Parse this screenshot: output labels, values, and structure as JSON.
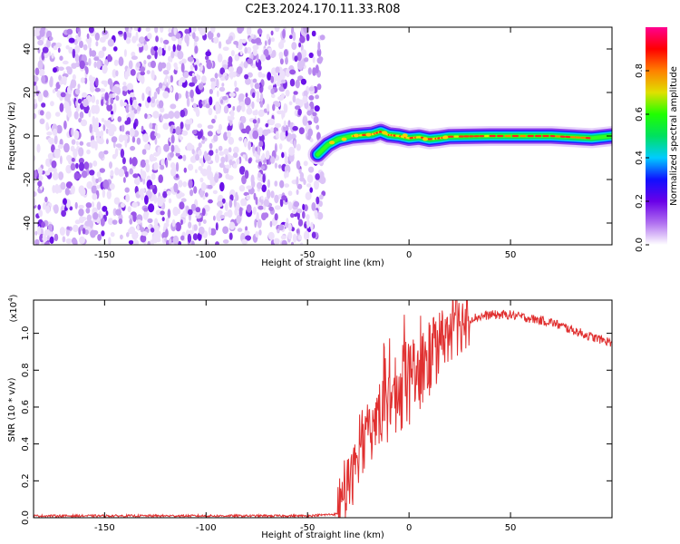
{
  "figure": {
    "title": "C2E3.2024.170.11.33.R08"
  },
  "chart_data": [
    {
      "type": "heatmap",
      "xlabel": "Height of straight line (km)",
      "ylabel": "Frequency (Hz)",
      "xlim": [
        -185,
        100
      ],
      "ylim": [
        -50,
        50
      ],
      "xticks": [
        -150,
        -100,
        -50,
        0,
        50
      ],
      "yticks": [
        -40,
        -20,
        0,
        20,
        40
      ],
      "noise_region_x": [
        -185,
        -42
      ],
      "ridge": [
        {
          "x": -45,
          "y": -8.5
        },
        {
          "x": -40,
          "y": -4
        },
        {
          "x": -35,
          "y": -1.5
        },
        {
          "x": -28,
          "y": 0
        },
        {
          "x": -22,
          "y": 0.5
        },
        {
          "x": -18,
          "y": 0.8
        },
        {
          "x": -14,
          "y": 2
        },
        {
          "x": -10,
          "y": 0.5
        },
        {
          "x": -5,
          "y": 0
        },
        {
          "x": 0,
          "y": -1
        },
        {
          "x": 5,
          "y": -0.5
        },
        {
          "x": 10,
          "y": -1.5
        },
        {
          "x": 15,
          "y": -1
        },
        {
          "x": 20,
          "y": -0.3
        },
        {
          "x": 40,
          "y": 0
        },
        {
          "x": 70,
          "y": 0
        },
        {
          "x": 90,
          "y": -1
        },
        {
          "x": 100,
          "y": 0
        }
      ],
      "colorbar": {
        "label": "Normalized spectral amplitude",
        "range": [
          0,
          1
        ],
        "ticks": [
          "0.0",
          "0.2",
          "0.4",
          "0.6",
          "0.8"
        ],
        "colors": [
          "#ffffff",
          "#b070f0",
          "#6a00e8",
          "#1010ff",
          "#00ccff",
          "#00e060",
          "#20ff00",
          "#e0e000",
          "#ff8000",
          "#ff0000",
          "#ff0090"
        ]
      }
    },
    {
      "type": "line",
      "xlabel": "Height of straight line (km)",
      "ylabel": "SNR (10 * v/v)",
      "yexponent": "(x10",
      "yexponent_power": "4",
      "yexponent_close": ")",
      "xlim": [
        -185,
        100
      ],
      "ylim": [
        0,
        1.18
      ],
      "xticks": [
        -150,
        -100,
        -50,
        0,
        50
      ],
      "yticks": [
        "0.0",
        "0.2",
        "0.4",
        "0.6",
        "0.8",
        "1.0"
      ],
      "color": "#e03030",
      "series": [
        {
          "x": [
            -185,
            -150,
            -100,
            -50,
            -35,
            -30,
            -25,
            -20,
            -15,
            -10,
            -5,
            0,
            5,
            10,
            15,
            20,
            25,
            30,
            40,
            50,
            55,
            60,
            70,
            80,
            90,
            100
          ],
          "y": [
            0.01,
            0.01,
            0.01,
            0.01,
            0.02,
            0.12,
            0.35,
            0.45,
            0.55,
            0.62,
            0.68,
            0.72,
            0.78,
            0.85,
            0.95,
            1.02,
            1.05,
            1.08,
            1.1,
            1.1,
            1.09,
            1.08,
            1.06,
            1.02,
            0.98,
            0.95
          ]
        }
      ]
    }
  ]
}
